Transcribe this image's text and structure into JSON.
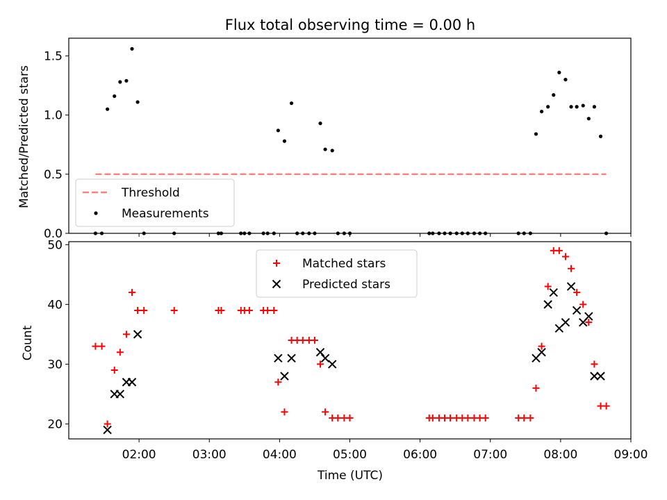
{
  "chart_data": [
    {
      "type": "scatter",
      "title": "Flux total observing time = 0.00 h",
      "ylabel": "Matched/Predicted stars",
      "xlabel": "",
      "x_unit": "hours UTC",
      "xlim": [
        1.0,
        9.0
      ],
      "ylim": [
        0.0,
        1.65
      ],
      "yticks": [
        0.0,
        0.5,
        1.0,
        1.5
      ],
      "ytick_labels": [
        "0.0",
        "0.5",
        "1.0",
        "1.5"
      ],
      "legend_position": "lower-left",
      "threshold": {
        "name": "Threshold",
        "value": 0.5,
        "x_range": [
          1.38,
          8.65
        ],
        "color": "#ff7f7f",
        "style": "dashed"
      },
      "series": [
        {
          "name": "Measurements",
          "color": "#000000",
          "marker": "dot",
          "x": [
            1.38,
            1.47,
            1.55,
            1.65,
            1.73,
            1.82,
            1.9,
            1.98,
            2.07,
            2.5,
            3.13,
            3.17,
            3.45,
            3.5,
            3.57,
            3.77,
            3.83,
            3.92,
            3.98,
            4.07,
            4.17,
            4.25,
            4.33,
            4.42,
            4.5,
            4.58,
            4.65,
            4.75,
            4.83,
            4.92,
            5.0,
            6.13,
            6.18,
            6.27,
            6.35,
            6.43,
            6.52,
            6.6,
            6.68,
            6.77,
            6.85,
            6.93,
            7.4,
            7.48,
            7.57,
            7.65,
            7.73,
            7.82,
            7.9,
            7.98,
            8.07,
            8.15,
            8.23,
            8.32,
            8.4,
            8.48,
            8.57,
            8.65
          ],
          "y": [
            0,
            0,
            1.05,
            1.16,
            1.28,
            1.29,
            1.56,
            1.11,
            0,
            0,
            0,
            0,
            0,
            0,
            0,
            0,
            0,
            0,
            0.87,
            0.78,
            1.1,
            0,
            0,
            0,
            0,
            0.93,
            0.71,
            0.7,
            0,
            0,
            0,
            0,
            0,
            0,
            0,
            0,
            0,
            0,
            0,
            0,
            0,
            0,
            0,
            0,
            0,
            0.84,
            1.03,
            1.07,
            1.17,
            1.36,
            1.3,
            1.07,
            1.07,
            1.08,
            0.97,
            1.07,
            0.82,
            0
          ]
        }
      ]
    },
    {
      "type": "scatter",
      "title": "",
      "ylabel": "Count",
      "xlabel": "Time (UTC)",
      "x_unit": "hours UTC",
      "xlim": [
        1.0,
        9.0
      ],
      "ylim": [
        17.5,
        50.5
      ],
      "yticks": [
        20,
        30,
        40,
        50
      ],
      "ytick_labels": [
        "20",
        "30",
        "40",
        "50"
      ],
      "xticks": [
        2,
        3,
        4,
        5,
        6,
        7,
        8,
        9
      ],
      "xtick_labels": [
        "02:00",
        "03:00",
        "04:00",
        "05:00",
        "06:00",
        "07:00",
        "08:00",
        "09:00"
      ],
      "legend_position": "top-center",
      "series": [
        {
          "name": "Matched stars",
          "color": "#ff0000",
          "marker": "plus",
          "x": [
            1.38,
            1.47,
            1.55,
            1.65,
            1.73,
            1.82,
            1.9,
            1.98,
            2.07,
            2.5,
            3.13,
            3.17,
            3.45,
            3.5,
            3.57,
            3.77,
            3.83,
            3.92,
            3.98,
            4.07,
            4.17,
            4.25,
            4.33,
            4.42,
            4.5,
            4.58,
            4.65,
            4.75,
            4.83,
            4.92,
            5.0,
            6.13,
            6.18,
            6.27,
            6.35,
            6.43,
            6.52,
            6.6,
            6.68,
            6.77,
            6.85,
            6.93,
            7.4,
            7.48,
            7.57,
            7.65,
            7.73,
            7.82,
            7.9,
            7.98,
            8.07,
            8.15,
            8.23,
            8.32,
            8.4,
            8.48,
            8.57,
            8.65
          ],
          "y": [
            33,
            33,
            20,
            29,
            32,
            35,
            42,
            39,
            39,
            39,
            39,
            39,
            39,
            39,
            39,
            39,
            39,
            39,
            27,
            22,
            34,
            34,
            34,
            34,
            34,
            30,
            22,
            21,
            21,
            21,
            21,
            21,
            21,
            21,
            21,
            21,
            21,
            21,
            21,
            21,
            21,
            21,
            21,
            21,
            21,
            26,
            33,
            43,
            49,
            49,
            48,
            46,
            42,
            40,
            37,
            30,
            23,
            23
          ]
        },
        {
          "name": "Predicted stars",
          "color": "#000000",
          "marker": "x",
          "x": [
            1.55,
            1.65,
            1.73,
            1.82,
            1.9,
            1.98,
            3.98,
            4.07,
            4.17,
            4.58,
            4.65,
            4.75,
            7.65,
            7.73,
            7.82,
            7.9,
            7.98,
            8.07,
            8.15,
            8.23,
            8.32,
            8.4,
            8.48,
            8.57
          ],
          "y": [
            19,
            25,
            25,
            27,
            27,
            35,
            31,
            28,
            31,
            32,
            31,
            30,
            31,
            32,
            40,
            42,
            36,
            37,
            43,
            39,
            37,
            38,
            28,
            28
          ]
        }
      ]
    }
  ]
}
